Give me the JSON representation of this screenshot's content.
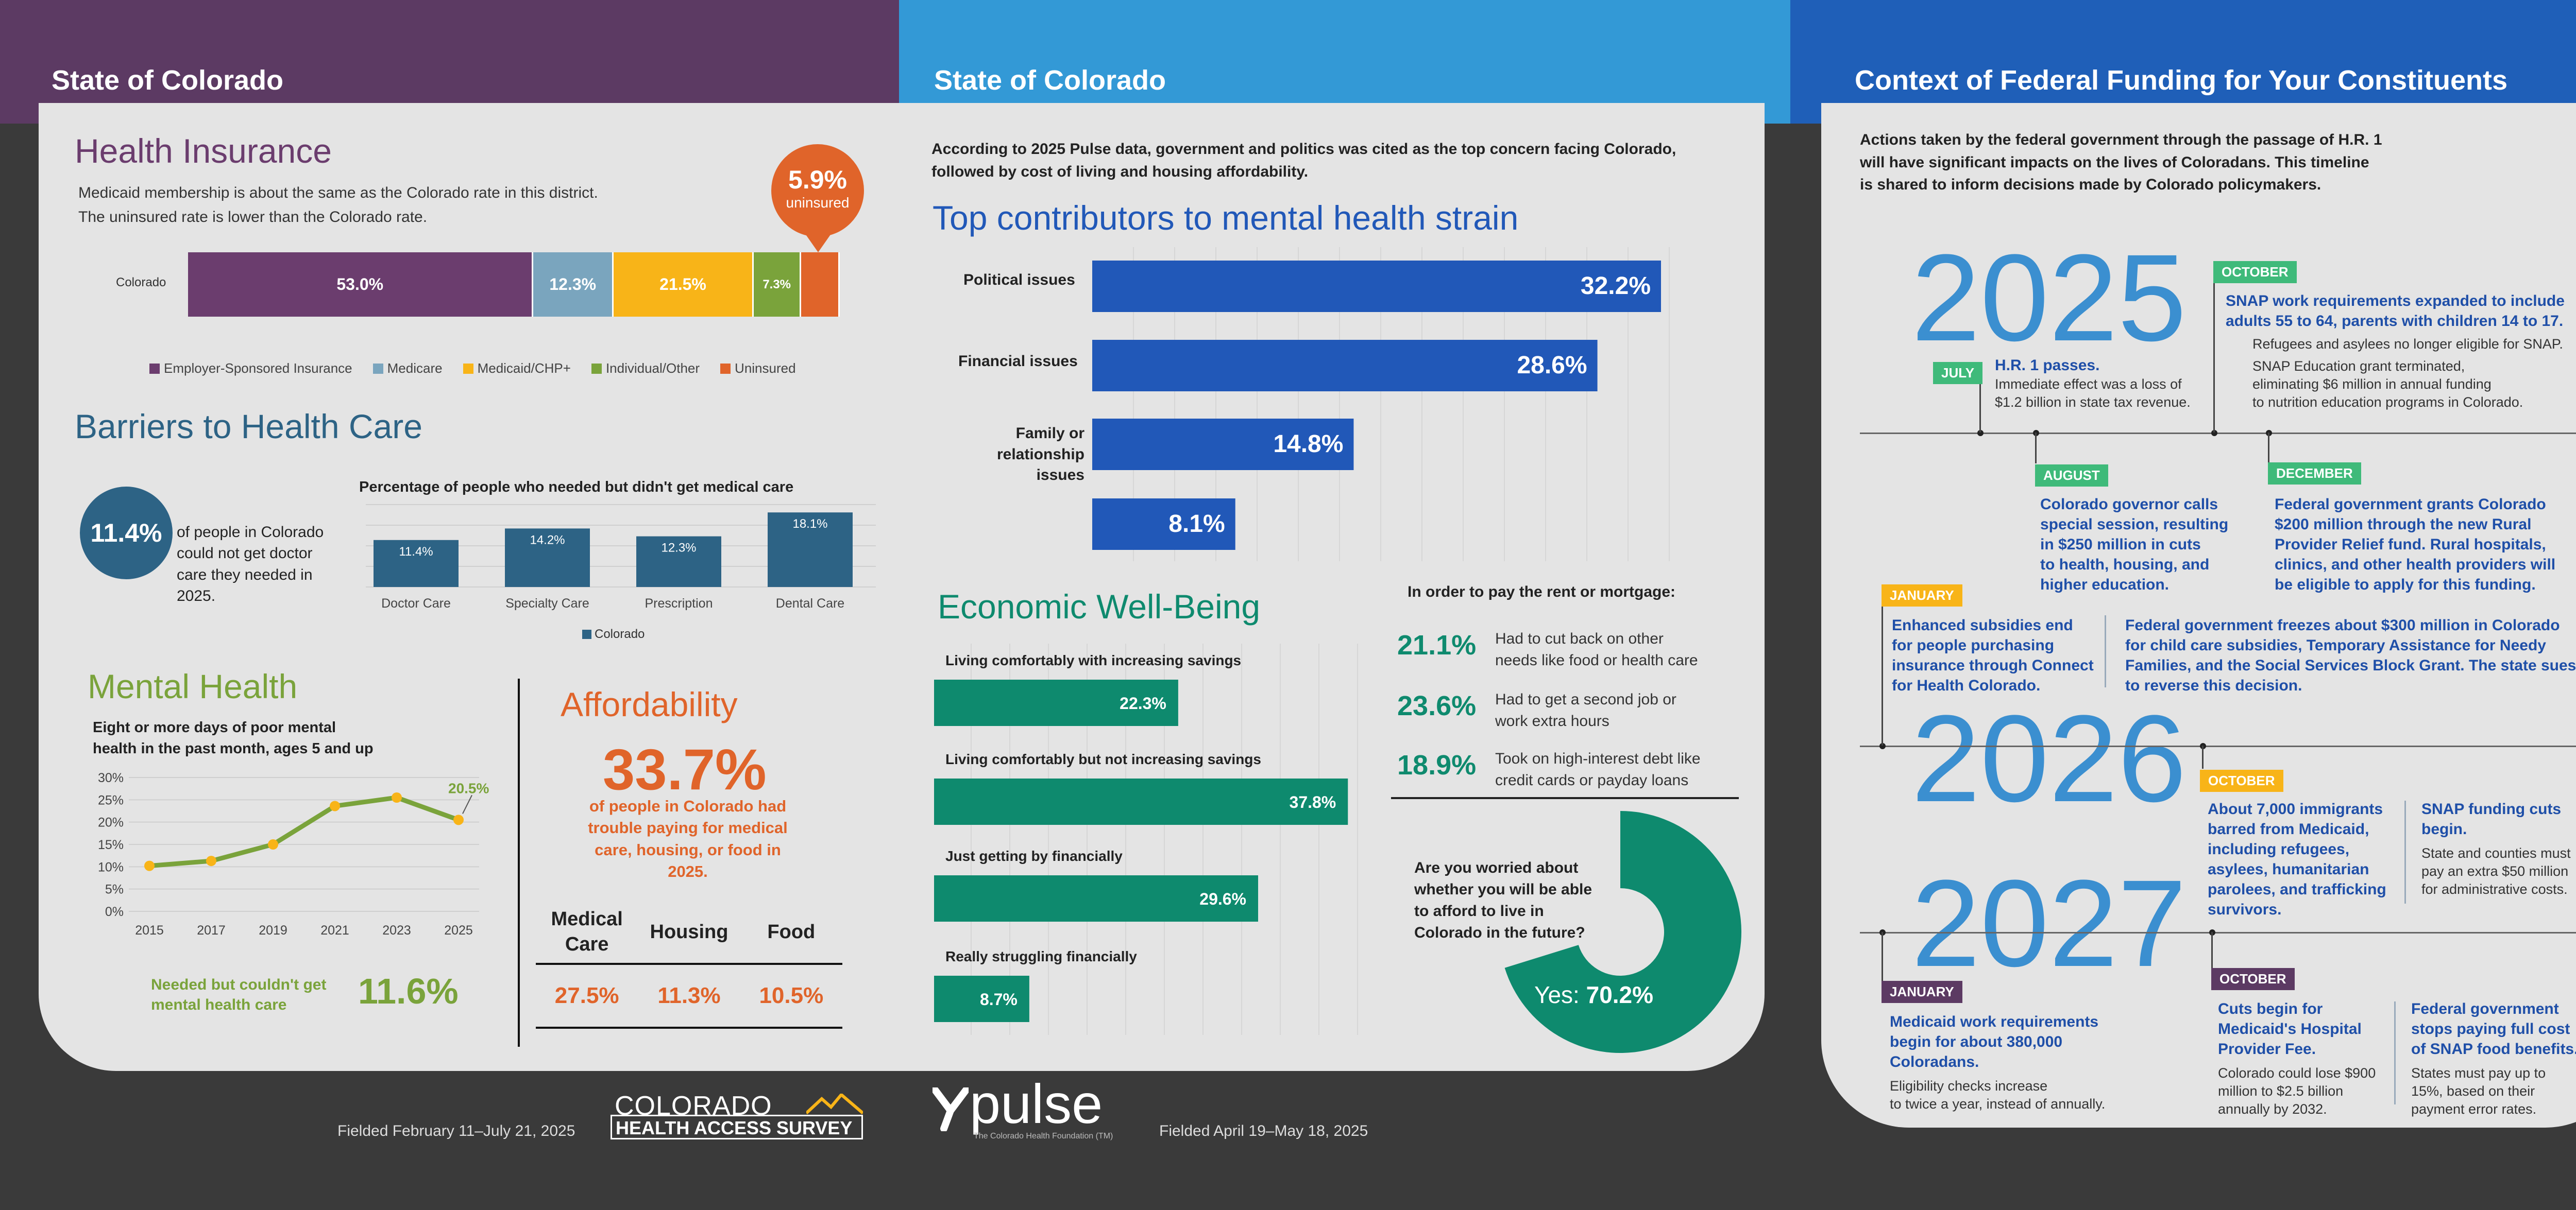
{
  "headers": {
    "left_title": "State of Colorado",
    "middle_title": "State of Colorado",
    "right_title": "Context of Federal Funding for Your Constituents"
  },
  "colors": {
    "left_header": "#5c3a63",
    "middle_header": "#3399d6",
    "right_header": "#1f5fb8",
    "purple": "#6b3d6e",
    "blue_dark": "#2d6385",
    "medicare": "#7aa5be",
    "yellow": "#f8b418",
    "green_light": "#7aa33b",
    "orange": "#e0642a",
    "bar_blue": "#2158b8",
    "teal": "#0e8a6e"
  },
  "health_insurance": {
    "title": "Health Insurance",
    "desc_line1": "Medicaid membership is about the same as the Colorado rate in this district.",
    "desc_line2": "The uninsured rate is lower than the Colorado rate.",
    "badge_value": "5.9%",
    "badge_label": "uninsured",
    "row_label": "Colorado",
    "segments": [
      {
        "label": "53.0%",
        "value": 53.0,
        "color": "#6b3d6e"
      },
      {
        "label": "12.3%",
        "value": 12.3,
        "color": "#7aa5be"
      },
      {
        "label": "21.5%",
        "value": 21.5,
        "color": "#f8b418"
      },
      {
        "label": "7.3%",
        "value": 7.3,
        "color": "#7aa33b"
      },
      {
        "label": "",
        "value": 5.9,
        "color": "#e0642a"
      }
    ],
    "legend": [
      {
        "label": "Employer-Sponsored Insurance",
        "color": "#6b3d6e"
      },
      {
        "label": "Medicare",
        "color": "#7aa5be"
      },
      {
        "label": "Medicaid/CHP+",
        "color": "#f8b418"
      },
      {
        "label": "Individual/Other",
        "color": "#7aa33b"
      },
      {
        "label": "Uninsured",
        "color": "#e0642a"
      }
    ]
  },
  "barriers": {
    "title": "Barriers to Health Care",
    "circle_value": "11.4%",
    "circle_text_1": "of people in Colorado",
    "circle_text_2": "could not get doctor",
    "circle_text_3": "care they needed in",
    "circle_text_4": "2025.",
    "chart_title": "Percentage of people who needed but didn't get medical care",
    "legend": "Colorado"
  },
  "mental_health": {
    "title": "Mental Health",
    "subtitle_1": "Eight or more days of poor mental",
    "subtitle_2": "health in the past month, ages 5 and up",
    "last_label": "20.5%",
    "needed_text_1": "Needed but couldn't get",
    "needed_text_2": "mental health care",
    "needed_value": "11.6%"
  },
  "affordability": {
    "title": "Affordability",
    "big_value": "33.7%",
    "text_1": "of people in Colorado had",
    "text_2": "trouble paying for medical",
    "text_3": "care, housing, or food in",
    "text_4": "2025.",
    "columns": [
      {
        "header_1": "Medical",
        "header_2": "Care",
        "value": "27.5%"
      },
      {
        "header_1": "Housing",
        "header_2": "",
        "value": "11.3%"
      },
      {
        "header_1": "Food",
        "header_2": "",
        "value": "10.5%"
      }
    ]
  },
  "middle": {
    "intro_1": "According to 2025 Pulse data, government and politics was cited as the top concern facing Colorado,",
    "intro_2": "followed by cost of living and housing affordability.",
    "strain_title": "Top contributors to mental health strain",
    "strain_labels": [
      "Political issues",
      "Financial issues",
      "Family or",
      "relationship",
      "issues",
      ""
    ],
    "econ_title": "Economic Well-Being",
    "rent_title": "In order to pay the rent or mortgage:",
    "rent_items": [
      {
        "value": "21.1%",
        "text_1": "Had to cut back on other",
        "text_2": "needs like food or health care"
      },
      {
        "value": "23.6%",
        "text_1": "Had to get a second job or",
        "text_2": "work extra hours"
      },
      {
        "value": "18.9%",
        "text_1": "Took on high-interest debt like",
        "text_2": "credit cards or payday loans"
      }
    ],
    "worry_1": "Are you worried about",
    "worry_2": "whether you will be able",
    "worry_3": "to afford to live in",
    "worry_4": "Colorado in the future?",
    "worry_label": "Yes:",
    "worry_value": "70.2%"
  },
  "footer": {
    "chas_fielded": "Fielded February 11–July 21, 2025",
    "chas_logo_1": "COLORADO",
    "chas_logo_2": "HEALTH ACCESS SURVEY",
    "pulse_logo": "pulse",
    "pulse_sub": "The Colorado Health Foundation (TM)",
    "pulse_fielded": "Fielded April 19–May 18, 2025"
  },
  "timeline": {
    "intro_1": "Actions taken by the federal government through the passage of H.R. 1",
    "intro_2": "will have significant impacts on the lives of Coloradans. This timeline",
    "intro_3": "is shared to inform decisions made by Colorado policymakers.",
    "year_2025": "2025",
    "year_2026": "2026",
    "year_2027": "2027",
    "july_tag": "JULY",
    "july_head": "H.R. 1 passes.",
    "july_text_1": "Immediate effect was a loss of",
    "july_text_2": "$1.2 billion in state tax revenue.",
    "oct25_tag": "OCTOBER",
    "oct25_head_1": "SNAP work requirements expanded to include",
    "oct25_head_2": "adults 55 to 64, parents with children 14 to 17.",
    "oct25_b1": "Refugees and asylees no longer eligible for SNAP.",
    "oct25_b2_1": "SNAP Education grant terminated,",
    "oct25_b2_2": "eliminating $6 million in annual funding",
    "oct25_b2_3": "to nutrition education programs in Colorado.",
    "aug_tag": "AUGUST",
    "aug_head_1": "Colorado governor calls",
    "aug_head_2": "special session, resulting",
    "aug_head_3": "in $250 million in cuts",
    "aug_head_4": "to health, housing, and",
    "aug_head_5": "higher education.",
    "dec_tag": "DECEMBER",
    "dec_head_1": "Federal government grants Colorado",
    "dec_head_2": "$200 million through the new Rural",
    "dec_head_3": "Provider Relief fund. Rural hospitals,",
    "dec_head_4": "clinics, and other health providers will",
    "dec_head_5": "be eligible to apply for this funding.",
    "jan26_tag": "JANUARY",
    "jan26_head_1": "Enhanced subsidies end",
    "jan26_head_2": "for people purchasing",
    "jan26_head_3": "insurance through Connect",
    "jan26_head_4": "for Health Colorado.",
    "jan26b_head_1": "Federal government freezes about $300 million in Colorado",
    "jan26b_head_2": "for child care subsidies, Temporary Assistance for Needy",
    "jan26b_head_3": "Families, and the Social Services Block Grant. The state sues",
    "jan26b_head_4": "to reverse this decision.",
    "oct26_tag": "OCTOBER",
    "oct26_head_1": "About 7,000 immigrants",
    "oct26_head_2": "barred from Medicaid,",
    "oct26_head_3": "including refugees,",
    "oct26_head_4": "asylees, humanitarian",
    "oct26_head_5": "parolees, and trafficking",
    "oct26_head_6": "survivors.",
    "oct26b_head_1": "SNAP funding cuts",
    "oct26b_head_2": "begin.",
    "oct26b_text_1": "State and counties must",
    "oct26b_text_2": "pay an extra $50 million",
    "oct26b_text_3": "for administrative costs.",
    "jan27_tag": "JANUARY",
    "jan27_head_1": "Medicaid work requirements",
    "jan27_head_2": "begin for about 380,000",
    "jan27_head_3": "Coloradans.",
    "jan27_text_1": "Eligibility checks increase",
    "jan27_text_2": "to twice a year, instead of annually.",
    "oct27_tag": "OCTOBER",
    "oct27_head_1": "Cuts begin for",
    "oct27_head_2": "Medicaid's Hospital",
    "oct27_head_3": "Provider Fee.",
    "oct27_text_1": "Colorado could lose $900",
    "oct27_text_2": "million to $2.5 billion",
    "oct27_text_3": "annually by 2032.",
    "oct27b_head_1": "Federal government",
    "oct27b_head_2": "stops paying full cost",
    "oct27b_head_3": "of SNAP food benefits.",
    "oct27b_text_1": "States must pay up to",
    "oct27b_text_2": "15%, based on their",
    "oct27b_text_3": "payment error rates."
  },
  "chart_data": [
    {
      "type": "bar",
      "title": "Percentage of people who needed but didn't get medical care",
      "categories": [
        "Doctor Care",
        "Specialty Care",
        "Prescription",
        "Dental Care"
      ],
      "values": [
        11.4,
        14.2,
        12.3,
        18.1
      ],
      "labels": [
        "11.4%",
        "14.2%",
        "12.3%",
        "18.1%"
      ],
      "legend": "Colorado",
      "ylim": [
        0,
        20
      ]
    },
    {
      "type": "line",
      "x": [
        "2015",
        "2017",
        "2019",
        "2021",
        "2023",
        "2025"
      ],
      "values": [
        10.2,
        11.3,
        15.0,
        23.6,
        25.5,
        20.5
      ],
      "yticks": [
        "0%",
        "5%",
        "10%",
        "15%",
        "20%",
        "25%",
        "30%"
      ],
      "ylim": [
        0,
        30
      ]
    },
    {
      "type": "bar",
      "title": "Top contributors to mental health strain",
      "values": [
        32.2,
        28.6,
        14.8,
        8.1
      ],
      "labels": [
        "32.2%",
        "28.6%",
        "14.8%",
        "8.1%"
      ],
      "xlim": [
        0,
        35
      ]
    },
    {
      "type": "bar",
      "title": "Economic Well-Being",
      "categories": [
        "Living comfortably with increasing savings",
        "Living comfortably but not increasing savings",
        "Just getting by financially",
        "Really struggling financially"
      ],
      "values": [
        22.3,
        37.8,
        29.6,
        8.7
      ],
      "labels": [
        "22.3%",
        "37.8%",
        "29.6%",
        "8.7%"
      ],
      "xlim": [
        0,
        40
      ]
    },
    {
      "type": "pie",
      "values": [
        70.2,
        29.8
      ],
      "labels": [
        "Yes: 70.2%",
        ""
      ]
    }
  ]
}
